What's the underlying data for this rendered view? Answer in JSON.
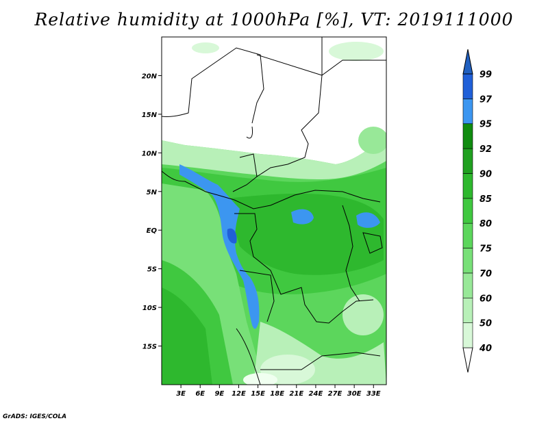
{
  "title": "Relative humidity at 1000hPa [%], VT: 2019111000",
  "credit": "GrADS: IGES/COLA",
  "map": {
    "lon_range": [
      0,
      35
    ],
    "lat_range": [
      -20,
      25
    ],
    "lat_ticks": [
      {
        "value": 20,
        "label": "20N"
      },
      {
        "value": 15,
        "label": "15N"
      },
      {
        "value": 10,
        "label": "10N"
      },
      {
        "value": 5,
        "label": "5N"
      },
      {
        "value": 0,
        "label": "EQ"
      },
      {
        "value": -5,
        "label": "5S"
      },
      {
        "value": -10,
        "label": "10S"
      },
      {
        "value": -15,
        "label": "15S"
      }
    ],
    "lon_ticks": [
      {
        "value": 3,
        "label": "3E"
      },
      {
        "value": 6,
        "label": "6E"
      },
      {
        "value": 9,
        "label": "9E"
      },
      {
        "value": 12,
        "label": "12E"
      },
      {
        "value": 15,
        "label": "15E"
      },
      {
        "value": 18,
        "label": "18E"
      },
      {
        "value": 21,
        "label": "21E"
      },
      {
        "value": 24,
        "label": "24E"
      },
      {
        "value": 27,
        "label": "27E"
      },
      {
        "value": 30,
        "label": "30E"
      },
      {
        "value": 33,
        "label": "33E"
      }
    ]
  },
  "colorbar": {
    "levels": [
      "40",
      "50",
      "60",
      "70",
      "75",
      "80",
      "85",
      "90",
      "92",
      "95",
      "97",
      "99"
    ],
    "colors": [
      "#f0fff0",
      "#d8f8d8",
      "#b8f0b8",
      "#98e898",
      "#78e078",
      "#5cd65c",
      "#40c840",
      "#2eb82e",
      "#20a020",
      "#108c10",
      "#3c96f0",
      "#2060d8",
      "#1040b0"
    ],
    "under_color": "#ffffff",
    "over_color": "#2060c0"
  }
}
